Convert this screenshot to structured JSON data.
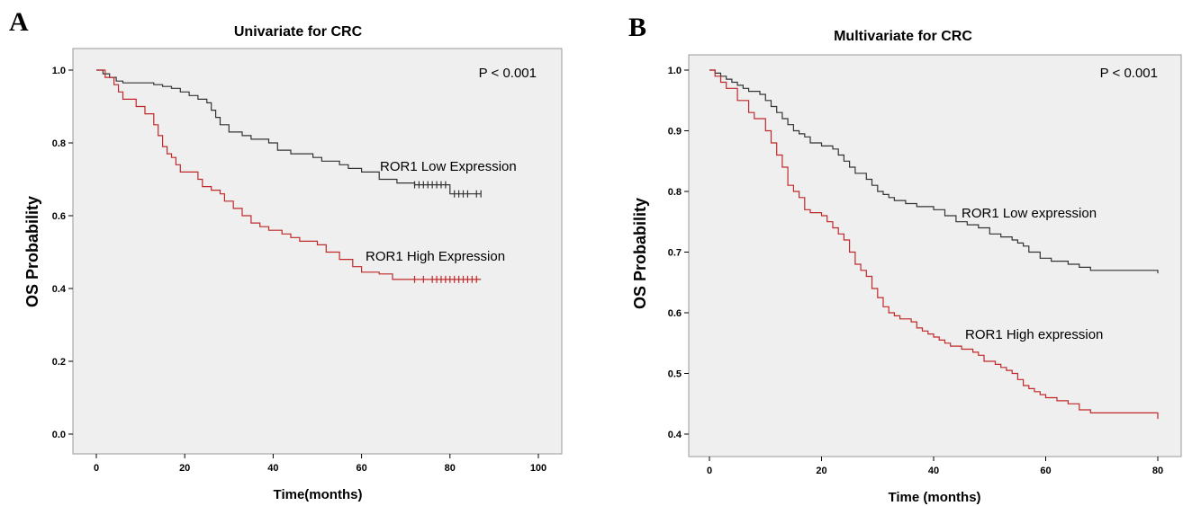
{
  "chart_data": [
    {
      "panel": "A",
      "type": "line",
      "title": "Univariate for CRC",
      "xlabel": "Time(months)",
      "ylabel": "OS Probability",
      "xlim": [
        0,
        100
      ],
      "ylim": [
        0,
        1
      ],
      "xticks": [
        "0",
        "20",
        "40",
        "60",
        "80",
        "100"
      ],
      "yticks": [
        "0.0",
        "0.2",
        "0.4",
        "0.6",
        "0.8",
        "1.0"
      ],
      "annotation": "P < 0.001",
      "grid": false,
      "series": [
        {
          "name": "ROR1 Low Expression",
          "color": "#333333",
          "step": [
            [
              0,
              1.0
            ],
            [
              1.5,
              0.99
            ],
            [
              3,
              0.98
            ],
            [
              4.5,
              0.97
            ],
            [
              6,
              0.965
            ],
            [
              13,
              0.96
            ],
            [
              15,
              0.955
            ],
            [
              17,
              0.95
            ],
            [
              19,
              0.94
            ],
            [
              21,
              0.93
            ],
            [
              23,
              0.92
            ],
            [
              25,
              0.91
            ],
            [
              26,
              0.89
            ],
            [
              27,
              0.87
            ],
            [
              28,
              0.85
            ],
            [
              30,
              0.83
            ],
            [
              33,
              0.82
            ],
            [
              35,
              0.81
            ],
            [
              39,
              0.8
            ],
            [
              41,
              0.78
            ],
            [
              44,
              0.77
            ],
            [
              49,
              0.76
            ],
            [
              51,
              0.75
            ],
            [
              55,
              0.74
            ],
            [
              57,
              0.73
            ],
            [
              60,
              0.72
            ],
            [
              64,
              0.7
            ],
            [
              68,
              0.69
            ],
            [
              72,
              0.685
            ],
            [
              79,
              0.685
            ],
            [
              80,
              0.66
            ],
            [
              87,
              0.66
            ]
          ],
          "censor": [
            72,
            73,
            74,
            75,
            76,
            77,
            78,
            79,
            81,
            82,
            83,
            84,
            86,
            87
          ],
          "censor_y": [
            0.685,
            0.685,
            0.685,
            0.685,
            0.685,
            0.685,
            0.685,
            0.685,
            0.66,
            0.66,
            0.66,
            0.66,
            0.66,
            0.66
          ]
        },
        {
          "name": "ROR1 High Expression",
          "color": "#c0282a",
          "step": [
            [
              0,
              1.0
            ],
            [
              2,
              0.98
            ],
            [
              4,
              0.96
            ],
            [
              5,
              0.94
            ],
            [
              6,
              0.92
            ],
            [
              9,
              0.9
            ],
            [
              11,
              0.88
            ],
            [
              13,
              0.85
            ],
            [
              14,
              0.82
            ],
            [
              15,
              0.79
            ],
            [
              16,
              0.77
            ],
            [
              17,
              0.76
            ],
            [
              18,
              0.74
            ],
            [
              19,
              0.72
            ],
            [
              23,
              0.7
            ],
            [
              24,
              0.68
            ],
            [
              26,
              0.67
            ],
            [
              28,
              0.66
            ],
            [
              29,
              0.64
            ],
            [
              31,
              0.62
            ],
            [
              33,
              0.6
            ],
            [
              35,
              0.58
            ],
            [
              37,
              0.57
            ],
            [
              39,
              0.56
            ],
            [
              42,
              0.55
            ],
            [
              44,
              0.54
            ],
            [
              46,
              0.53
            ],
            [
              50,
              0.52
            ],
            [
              52,
              0.5
            ],
            [
              55,
              0.48
            ],
            [
              58,
              0.46
            ],
            [
              60,
              0.445
            ],
            [
              64,
              0.44
            ],
            [
              67,
              0.425
            ],
            [
              87,
              0.425
            ]
          ],
          "censor": [
            72,
            74,
            76,
            77,
            78,
            79,
            80,
            81,
            82,
            83,
            84,
            85,
            86
          ],
          "censor_y": [
            0.425,
            0.425,
            0.425,
            0.425,
            0.425,
            0.425,
            0.425,
            0.425,
            0.425,
            0.425,
            0.425,
            0.425,
            0.425
          ]
        }
      ]
    },
    {
      "panel": "B",
      "type": "line",
      "title": "Multivariate for CRC",
      "xlabel": "Time (months)",
      "ylabel": "OS Probability",
      "xlim": [
        0,
        80
      ],
      "ylim": [
        0.4,
        1.0
      ],
      "xticks": [
        "0",
        "20",
        "40",
        "60",
        "80"
      ],
      "yticks": [
        "0.4",
        "0.5",
        "0.6",
        "0.7",
        "0.8",
        "0.9",
        "1.0"
      ],
      "annotation": "P < 0.001",
      "grid": false,
      "series": [
        {
          "name": "ROR1 Low expression",
          "color": "#333333",
          "step": [
            [
              0,
              1.0
            ],
            [
              1,
              0.995
            ],
            [
              2,
              0.99
            ],
            [
              3,
              0.985
            ],
            [
              4,
              0.98
            ],
            [
              5,
              0.975
            ],
            [
              6,
              0.97
            ],
            [
              7,
              0.965
            ],
            [
              9,
              0.96
            ],
            [
              10,
              0.95
            ],
            [
              11,
              0.94
            ],
            [
              12,
              0.93
            ],
            [
              13,
              0.92
            ],
            [
              14,
              0.91
            ],
            [
              15,
              0.9
            ],
            [
              16,
              0.895
            ],
            [
              17,
              0.89
            ],
            [
              18,
              0.88
            ],
            [
              20,
              0.875
            ],
            [
              22,
              0.87
            ],
            [
              23,
              0.86
            ],
            [
              24,
              0.85
            ],
            [
              25,
              0.84
            ],
            [
              26,
              0.83
            ],
            [
              28,
              0.82
            ],
            [
              29,
              0.81
            ],
            [
              30,
              0.8
            ],
            [
              31,
              0.795
            ],
            [
              32,
              0.79
            ],
            [
              33,
              0.785
            ],
            [
              35,
              0.78
            ],
            [
              37,
              0.775
            ],
            [
              40,
              0.77
            ],
            [
              42,
              0.76
            ],
            [
              44,
              0.75
            ],
            [
              46,
              0.745
            ],
            [
              48,
              0.74
            ],
            [
              50,
              0.73
            ],
            [
              52,
              0.725
            ],
            [
              54,
              0.72
            ],
            [
              55,
              0.715
            ],
            [
              56,
              0.71
            ],
            [
              57,
              0.7
            ],
            [
              59,
              0.69
            ],
            [
              61,
              0.685
            ],
            [
              64,
              0.68
            ],
            [
              66,
              0.675
            ],
            [
              68,
              0.67
            ],
            [
              79,
              0.67
            ],
            [
              80,
              0.665
            ]
          ]
        },
        {
          "name": "ROR1 High expression",
          "color": "#c0282a",
          "step": [
            [
              0,
              1.0
            ],
            [
              1,
              0.99
            ],
            [
              2,
              0.98
            ],
            [
              3,
              0.97
            ],
            [
              5,
              0.95
            ],
            [
              7,
              0.93
            ],
            [
              8,
              0.92
            ],
            [
              10,
              0.9
            ],
            [
              11,
              0.88
            ],
            [
              12,
              0.86
            ],
            [
              13,
              0.84
            ],
            [
              14,
              0.81
            ],
            [
              15,
              0.8
            ],
            [
              16,
              0.79
            ],
            [
              17,
              0.77
            ],
            [
              18,
              0.765
            ],
            [
              20,
              0.76
            ],
            [
              21,
              0.75
            ],
            [
              22,
              0.74
            ],
            [
              23,
              0.73
            ],
            [
              24,
              0.72
            ],
            [
              25,
              0.7
            ],
            [
              26,
              0.68
            ],
            [
              27,
              0.67
            ],
            [
              28,
              0.66
            ],
            [
              29,
              0.64
            ],
            [
              30,
              0.625
            ],
            [
              31,
              0.61
            ],
            [
              32,
              0.6
            ],
            [
              33,
              0.595
            ],
            [
              34,
              0.59
            ],
            [
              36,
              0.585
            ],
            [
              37,
              0.575
            ],
            [
              38,
              0.57
            ],
            [
              39,
              0.565
            ],
            [
              40,
              0.56
            ],
            [
              41,
              0.555
            ],
            [
              42,
              0.55
            ],
            [
              43,
              0.545
            ],
            [
              45,
              0.54
            ],
            [
              47,
              0.535
            ],
            [
              48,
              0.53
            ],
            [
              49,
              0.52
            ],
            [
              51,
              0.515
            ],
            [
              52,
              0.51
            ],
            [
              53,
              0.505
            ],
            [
              54,
              0.5
            ],
            [
              55,
              0.49
            ],
            [
              56,
              0.48
            ],
            [
              57,
              0.475
            ],
            [
              58,
              0.47
            ],
            [
              59,
              0.465
            ],
            [
              60,
              0.46
            ],
            [
              62,
              0.455
            ],
            [
              64,
              0.45
            ],
            [
              66,
              0.44
            ],
            [
              68,
              0.435
            ],
            [
              79,
              0.435
            ],
            [
              80,
              0.425
            ]
          ]
        }
      ]
    }
  ]
}
